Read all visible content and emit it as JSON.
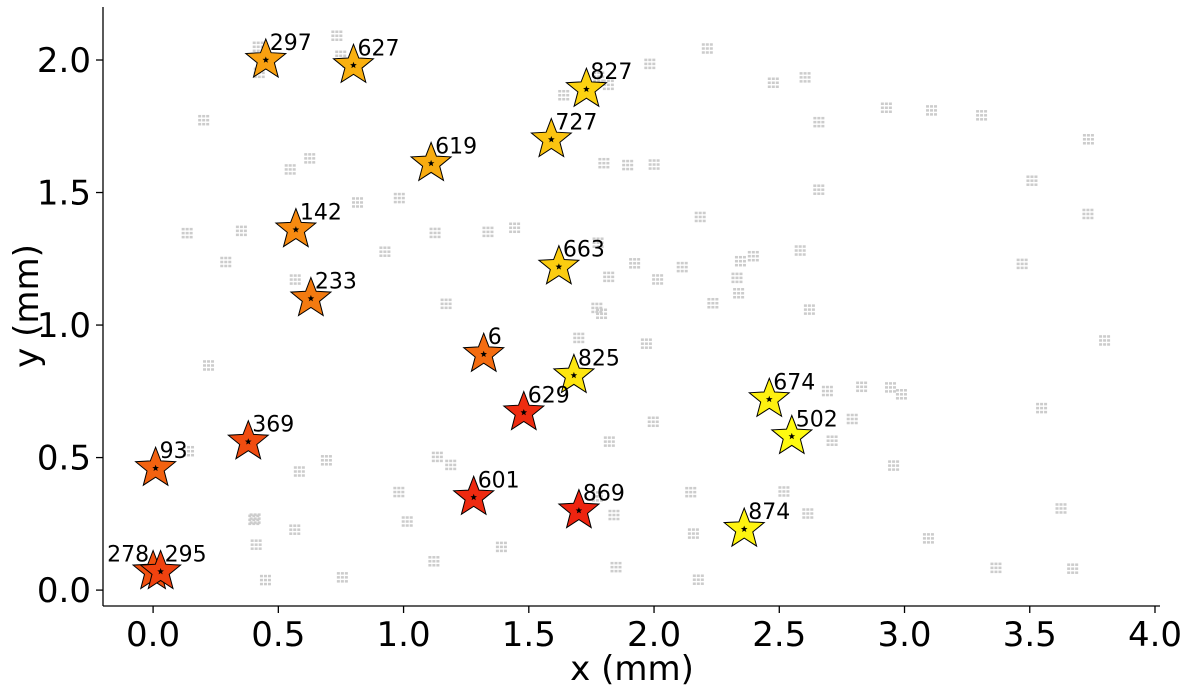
{
  "chart_data": {
    "type": "scatter",
    "xlabel": "x (mm)",
    "ylabel": "y (mm)",
    "xlim": [
      -0.2,
      4.02
    ],
    "ylim": [
      -0.06,
      2.2
    ],
    "xticks": [
      "0.0",
      "0.5",
      "1.0",
      "1.5",
      "2.0",
      "2.5",
      "3.0",
      "3.5",
      "4.0"
    ],
    "yticks": [
      "0.0",
      "0.5",
      "1.0",
      "1.5",
      "2.0"
    ],
    "xtick_values": [
      0.0,
      0.5,
      1.0,
      1.5,
      2.0,
      2.5,
      3.0,
      3.5,
      4.0
    ],
    "ytick_values": [
      0.0,
      0.5,
      1.0,
      1.5,
      2.0
    ],
    "grid": false,
    "marker": "star",
    "colormap": "autumn",
    "points": [
      {
        "label": "297",
        "x": 0.45,
        "y": 2.0,
        "color": "#f8a010"
      },
      {
        "label": "627",
        "x": 0.8,
        "y": 1.98,
        "color": "#f9b010"
      },
      {
        "label": "827",
        "x": 1.73,
        "y": 1.89,
        "color": "#fcd210"
      },
      {
        "label": "727",
        "x": 1.59,
        "y": 1.7,
        "color": "#fbc410"
      },
      {
        "label": "619",
        "x": 1.11,
        "y": 1.61,
        "color": "#f8ac10"
      },
      {
        "label": "142",
        "x": 0.57,
        "y": 1.36,
        "color": "#f78a10"
      },
      {
        "label": "663",
        "x": 1.62,
        "y": 1.22,
        "color": "#fbcc10"
      },
      {
        "label": "233",
        "x": 0.63,
        "y": 1.1,
        "color": "#f37a10"
      },
      {
        "label": "6",
        "x": 1.32,
        "y": 0.89,
        "color": "#f46c10"
      },
      {
        "label": "825",
        "x": 1.68,
        "y": 0.81,
        "color": "#fde510"
      },
      {
        "label": "674",
        "x": 2.46,
        "y": 0.72,
        "color": "#fef010"
      },
      {
        "label": "629",
        "x": 1.48,
        "y": 0.67,
        "color": "#ee2c10"
      },
      {
        "label": "502",
        "x": 2.55,
        "y": 0.58,
        "color": "#fefa10"
      },
      {
        "label": "369",
        "x": 0.38,
        "y": 0.56,
        "color": "#f04c10"
      },
      {
        "label": "93",
        "x": 0.01,
        "y": 0.46,
        "color": "#f26210"
      },
      {
        "label": "601",
        "x": 1.28,
        "y": 0.35,
        "color": "#ee2a10"
      },
      {
        "label": "869",
        "x": 1.7,
        "y": 0.3,
        "color": "#ee2410"
      },
      {
        "label": "874",
        "x": 2.36,
        "y": 0.23,
        "color": "#fef310"
      },
      {
        "label": "278",
        "x": 0.0,
        "y": 0.07,
        "color": "#f0500f"
      },
      {
        "label": "295",
        "x": 0.03,
        "y": 0.07,
        "color": "#f0420f"
      }
    ]
  }
}
